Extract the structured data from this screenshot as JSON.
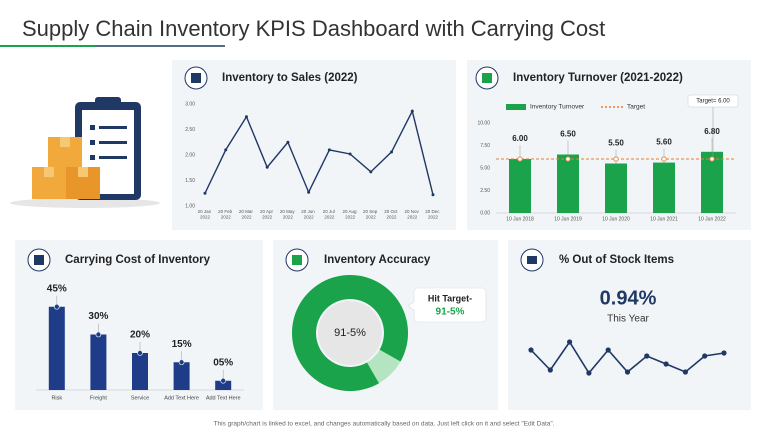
{
  "title": "Supply Chain Inventory KPIS Dashboard with Carrying Cost",
  "footer": "This graph/chart is linked to excel, and changes automatically based on data. Just left click on it and select \"Edit Data\".",
  "chart_data": [
    {
      "type": "line",
      "title": "Inventory to Sales (2022)",
      "categories": [
        "20 Jan 2022",
        "20 Feb 2022",
        "20 Mar 2022",
        "20 Apr 2022",
        "20 May 2022",
        "20 Jun 2022",
        "20 Jul 2022",
        "20 Aug 2022",
        "20 Sep 2022",
        "20 Oct 2022",
        "20 Nov 2022",
        "20 Dec 2022"
      ],
      "values": [
        1.25,
        2.1,
        2.75,
        1.76,
        2.25,
        1.27,
        2.1,
        2.02,
        1.67,
        2.06,
        2.86,
        1.22
      ],
      "color": "#1f3864",
      "ylim": [
        1,
        3
      ],
      "yticks": [
        {
          "value": 1,
          "label": "1.00"
        },
        {
          "value": 1.5,
          "label": "1.50"
        },
        {
          "value": 2,
          "label": "2.00"
        },
        {
          "value": 2.5,
          "label": "2.50"
        },
        {
          "value": 3,
          "label": "3.00"
        }
      ],
      "grid": false
    },
    {
      "type": "bar",
      "title": "Inventory Turnover (2021-2022)",
      "categories": [
        "10 Jun 2018",
        "10 Jun 2019",
        "10 Jun 2020",
        "10 Jun 2021",
        "10 Jun 2022"
      ],
      "series": [
        {
          "name": "Inventory Turnover",
          "color": "#1ba34b",
          "values": [
            6,
            6.5,
            5.5,
            5.6,
            6.8
          ],
          "value_labels": [
            "6.00",
            "6.50",
            "5.50",
            "5.60",
            "6.80"
          ]
        },
        {
          "name": "Target",
          "color": "#e97b2c",
          "type": "line",
          "values": [
            6,
            6,
            6,
            6,
            6
          ]
        }
      ],
      "annotation": "Target= 6.00",
      "ylim": [
        0,
        10
      ],
      "yticks": [
        {
          "value": 0,
          "label": "0.00"
        },
        {
          "value": 2.5,
          "label": "2.50"
        },
        {
          "value": 5,
          "label": "5.00"
        },
        {
          "value": 7.5,
          "label": "7.50"
        },
        {
          "value": 10,
          "label": "10.00"
        }
      ],
      "legend": "top",
      "grid": false
    },
    {
      "type": "bar",
      "title": "Carrying Cost of Inventory",
      "categories": [
        "Risk",
        "Freight",
        "Service",
        "Add Text Here",
        "Add Text Here"
      ],
      "values": [
        45,
        30,
        20,
        15,
        5
      ],
      "value_labels": [
        "45%",
        "30%",
        "20%",
        "15%",
        "05%"
      ],
      "color": "#1f3c88"
    },
    {
      "type": "pie",
      "title": "Inventory Accuracy",
      "values": [
        91.5
      ],
      "value_labels": [
        "91-5%"
      ],
      "color": "#1ba34b",
      "annotation": {
        "text": "Hit Target-",
        "target": "91-5%"
      }
    },
    {
      "type": "line",
      "title": "% Out of Stock Items",
      "kpi": "0.94%",
      "kpi_caption": "This Year",
      "values": [
        5,
        1,
        6.6,
        0.4,
        5,
        0.6,
        3.8,
        2.2,
        0.6,
        3.8,
        4.4
      ],
      "color": "#1f3864"
    }
  ]
}
